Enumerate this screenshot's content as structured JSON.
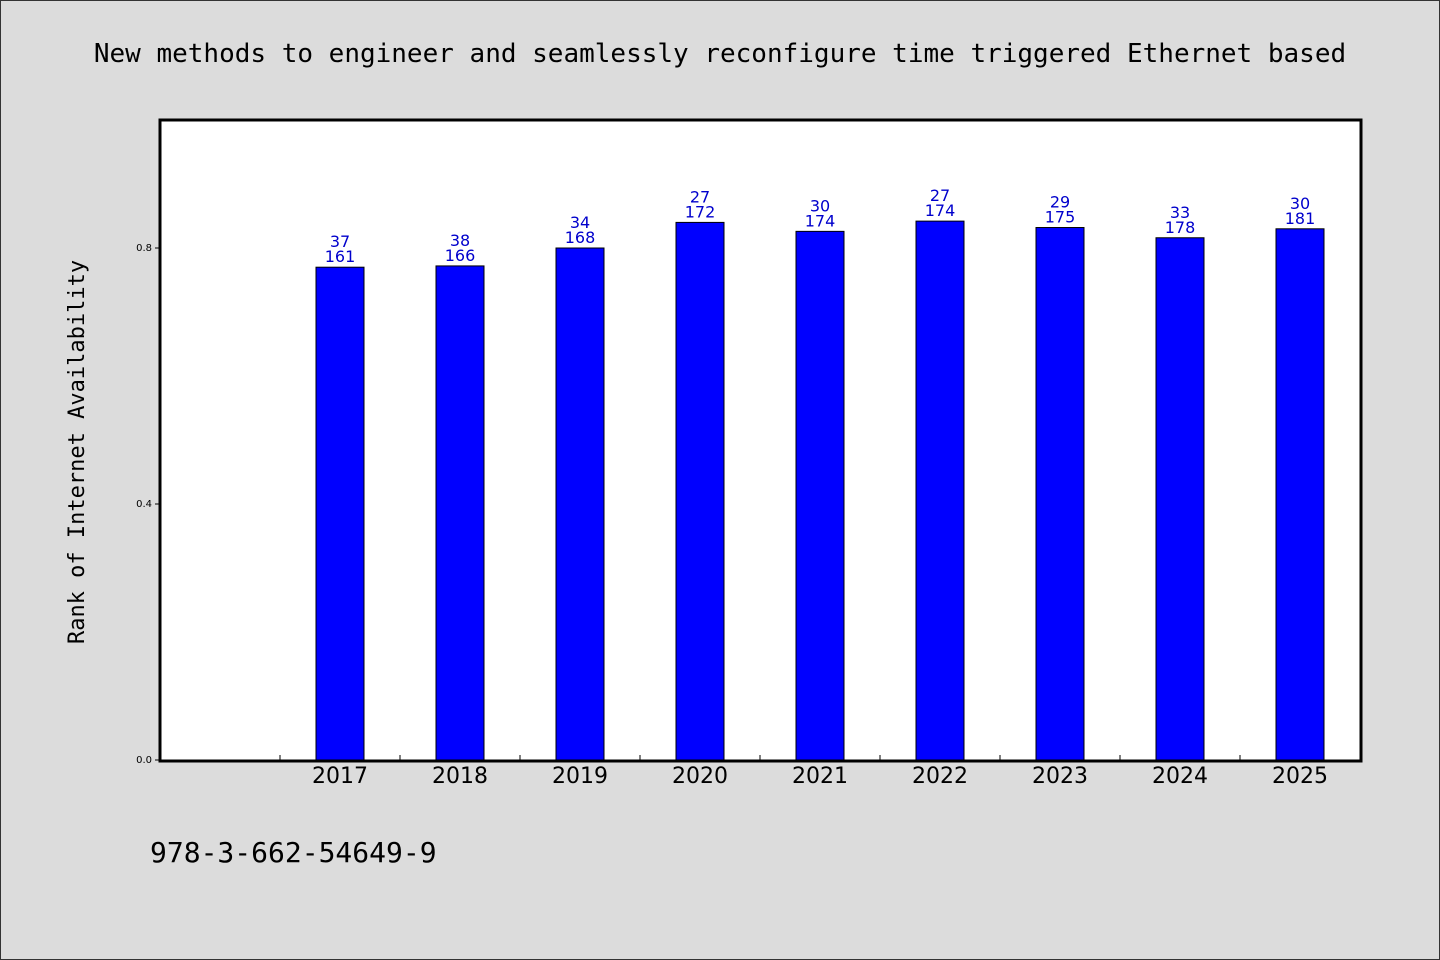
{
  "title": "New methods to engineer and seamlessly reconfigure time triggered Ethernet based",
  "footer_text": "978-3-662-54649-9",
  "colors": {
    "background": "#dcdcdc",
    "plot_background": "#ffffff",
    "bar": "#0000ff",
    "bar_label": "#0000cc"
  },
  "chart_data": {
    "type": "bar",
    "title": "New methods to engineer and seamlessly reconfigure time triggered Ethernet based",
    "xlabel": "",
    "ylabel": "Rank of Internet Availability",
    "categories": [
      "2017",
      "2018",
      "2019",
      "2020",
      "2021",
      "2022",
      "2023",
      "2024",
      "2025"
    ],
    "values": [
      0.77,
      0.772,
      0.8,
      0.84,
      0.826,
      0.842,
      0.832,
      0.816,
      0.83
    ],
    "bar_labels_top": [
      "37",
      "38",
      "34",
      "27",
      "30",
      "27",
      "29",
      "33",
      "30"
    ],
    "bar_labels_bottom": [
      "161",
      "166",
      "168",
      "172",
      "174",
      "174",
      "175",
      "178",
      "181"
    ],
    "yticks": [
      "0.0",
      "0.4",
      "0.8"
    ],
    "ylim": [
      0,
      1.0
    ],
    "grid": false,
    "legend": "none"
  }
}
